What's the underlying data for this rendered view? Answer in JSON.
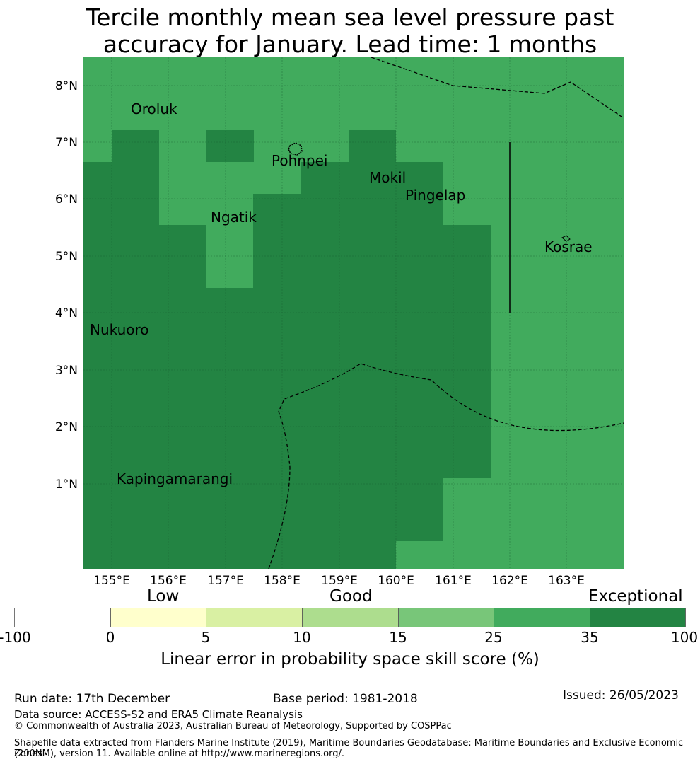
{
  "title_line1": "Tercile monthly mean sea level pressure past",
  "title_line2": "accuracy for January. Lead time: 1 months",
  "map": {
    "lon_ticks": [
      "155°E",
      "156°E",
      "157°E",
      "158°E",
      "159°E",
      "160°E",
      "161°E",
      "162°E",
      "163°E"
    ],
    "lat_ticks": [
      "8°N",
      "7°N",
      "6°N",
      "5°N",
      "4°N",
      "3°N",
      "2°N",
      "1°N"
    ],
    "places": [
      {
        "name": "Oroluk"
      },
      {
        "name": "Pohnpei"
      },
      {
        "name": "Mokil"
      },
      {
        "name": "Pingelap"
      },
      {
        "name": "Ngatik"
      },
      {
        "name": "Kosrae"
      },
      {
        "name": "Nukuoro"
      },
      {
        "name": "Kapingamarangi"
      }
    ],
    "colors": {
      "skill_25_35": "#41ab5d",
      "skill_35_100": "#238443"
    }
  },
  "colorbar": {
    "categories": [
      "Low",
      "Good",
      "Exceptional"
    ],
    "ticks": [
      "-100",
      "0",
      "5",
      "10",
      "15",
      "25",
      "35",
      "100"
    ],
    "colors": [
      "#ffffff",
      "#ffffcc",
      "#d9f0a3",
      "#addd8e",
      "#78c679",
      "#41ab5d",
      "#238443"
    ],
    "label": "Linear error in probability space skill score (%)"
  },
  "footer": {
    "run_date": "Run date: 17th December",
    "base_period": "Base period: 1981-2018",
    "issued": "Issued: 26/05/2023",
    "data_source": "Data source: ACCESS-S2 and ERA5 Climate Reanalysis",
    "copyright": "© Commonwealth of Australia 2023, Australian Bureau of Meteorology, Supported by COSPPac",
    "shapefile_1": "Shapefile data extracted from Flanders Marine Institute (2019), Maritime Boundaries Geodatabase: Maritime Boundaries and Exclusive Economic Zones",
    "shapefile_2": "(200NM), version 11. Available online at http://www.marineregions.org/."
  }
}
